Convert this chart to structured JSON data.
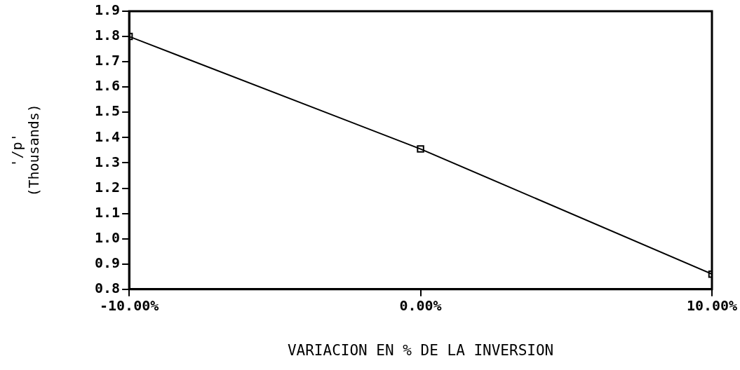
{
  "chart_data": {
    "type": "line",
    "xlabel": "VARIACION EN % DE LA INVERSION",
    "ylabel": "'/p'\n(Thousands)",
    "x": [
      -10,
      0,
      10
    ],
    "series": [
      {
        "color": "#000000",
        "values": [
          1.8,
          1.355,
          0.86
        ]
      }
    ],
    "xlim": [
      -10,
      10
    ],
    "xticks": [
      {
        "value": -10,
        "label": "-10.00%"
      },
      {
        "value": 0,
        "label": "0.00%"
      },
      {
        "value": 10,
        "label": "10.00%"
      }
    ],
    "ylim": [
      0.8,
      1.9
    ],
    "yticks": [
      {
        "value": 0.8,
        "label": "0.8"
      },
      {
        "value": 0.9,
        "label": "0.9"
      },
      {
        "value": 1,
        "label": "1.0"
      },
      {
        "value": 1.1,
        "label": "1.1"
      },
      {
        "value": 1.2,
        "label": "1.2"
      },
      {
        "value": 1.3,
        "label": "1.3"
      },
      {
        "value": 1.4,
        "label": "1.4"
      },
      {
        "value": 1.5,
        "label": "1.5"
      },
      {
        "value": 1.6,
        "label": "1.6"
      },
      {
        "value": 1.7,
        "label": "1.7"
      },
      {
        "value": 1.8,
        "label": "1.8"
      },
      {
        "value": 1.9,
        "label": "1.9"
      }
    ],
    "grid": false,
    "legend": false,
    "marker": "square",
    "line_style": "solid"
  }
}
